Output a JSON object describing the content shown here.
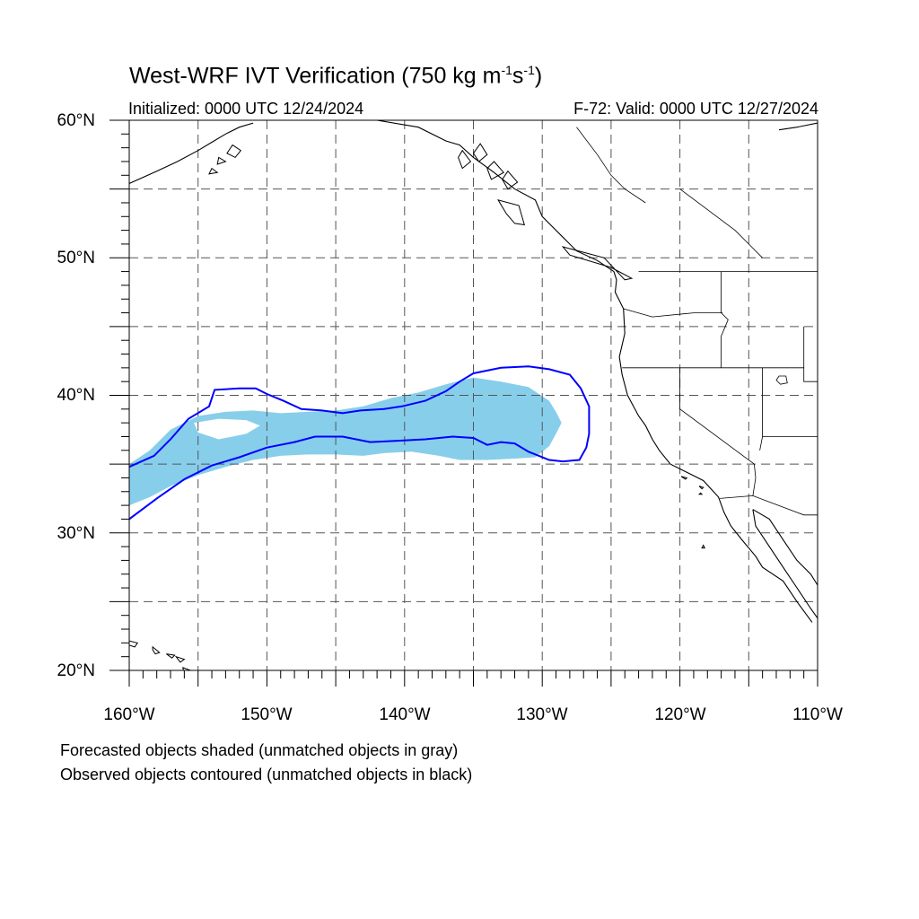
{
  "title": {
    "main": "West-WRF IVT Verification (750 kg m",
    "sup1": "-1",
    "mid": "s",
    "sup2": "-1",
    "end": ")"
  },
  "subtitle_left": "Initialized: 0000 UTC 12/24/2024",
  "subtitle_right": "F-72: Valid: 0000 UTC 12/27/2024",
  "lat_labels": [
    "60°N",
    "50°N",
    "40°N",
    "30°N",
    "20°N"
  ],
  "lon_labels": [
    "160°W",
    "150°W",
    "140°W",
    "130°W",
    "120°W",
    "110°W"
  ],
  "notes": {
    "line1": "Forecasted objects shaded (unmatched objects in gray)",
    "line2": "Observed objects contoured (unmatched objects in black)"
  },
  "map": {
    "lon_range": [
      -160,
      -110
    ],
    "lat_range": [
      20,
      60
    ],
    "grid_interval_deg": 5,
    "forecast_fill_color": "#87CEEB",
    "observed_contour_color": "#0000FF",
    "coastline_color": "#000000",
    "forecast_object_outline": [
      [
        -160,
        32.0
      ],
      [
        -160,
        35.0
      ],
      [
        -158.5,
        36.0
      ],
      [
        -157,
        37.5
      ],
      [
        -155,
        38.5
      ],
      [
        -153,
        38.8
      ],
      [
        -151,
        38.9
      ],
      [
        -149,
        38.7
      ],
      [
        -147,
        38.8
      ],
      [
        -145,
        38.9
      ],
      [
        -143,
        39.2
      ],
      [
        -141,
        39.8
      ],
      [
        -139,
        40.2
      ],
      [
        -137,
        40.8
      ],
      [
        -135,
        41.3
      ],
      [
        -133,
        41.0
      ],
      [
        -131,
        40.6
      ],
      [
        -129.5,
        39.6
      ],
      [
        -129,
        38.8
      ],
      [
        -128.6,
        38.0
      ],
      [
        -129,
        37.2
      ],
      [
        -129.5,
        36.3
      ],
      [
        -130.5,
        35.5
      ],
      [
        -132,
        35.4
      ],
      [
        -134,
        35.3
      ],
      [
        -136,
        35.3
      ],
      [
        -137.5,
        35.6
      ],
      [
        -139.5,
        35.9
      ],
      [
        -141.5,
        35.8
      ],
      [
        -143,
        35.6
      ],
      [
        -145,
        35.7
      ],
      [
        -147,
        35.7
      ],
      [
        -149,
        35.6
      ],
      [
        -151,
        35.3
      ],
      [
        -153,
        34.8
      ],
      [
        -155,
        34.2
      ],
      [
        -157,
        33.4
      ],
      [
        -158.5,
        32.6
      ]
    ],
    "forecast_hole_outline": [
      [
        -155.3,
        38.0
      ],
      [
        -153.5,
        38.3
      ],
      [
        -151.5,
        38.2
      ],
      [
        -150.5,
        37.8
      ],
      [
        -151.5,
        37.2
      ],
      [
        -153.5,
        36.8
      ],
      [
        -155.0,
        37.3
      ]
    ],
    "observed_contour_outline": [
      [
        -160,
        34.8
      ],
      [
        -158.2,
        35.6
      ],
      [
        -157,
        36.8
      ],
      [
        -155.7,
        38.3
      ],
      [
        -154.2,
        39.2
      ],
      [
        -153.8,
        40.4
      ],
      [
        -152,
        40.5
      ],
      [
        -150.8,
        40.5
      ],
      [
        -150,
        40.1
      ],
      [
        -148.8,
        39.6
      ],
      [
        -147.5,
        39.0
      ],
      [
        -146,
        38.9
      ],
      [
        -144.5,
        38.7
      ],
      [
        -143.2,
        38.9
      ],
      [
        -141.5,
        39.0
      ],
      [
        -140.2,
        39.2
      ],
      [
        -138.5,
        39.6
      ],
      [
        -137,
        40.3
      ],
      [
        -136,
        41.0
      ],
      [
        -135,
        41.6
      ],
      [
        -133,
        42.0
      ],
      [
        -131,
        42.1
      ],
      [
        -129.5,
        41.9
      ],
      [
        -128,
        41.5
      ],
      [
        -127.2,
        40.5
      ],
      [
        -126.6,
        39.2
      ],
      [
        -126.6,
        37.2
      ],
      [
        -126.8,
        36.2
      ],
      [
        -127.3,
        35.3
      ],
      [
        -128.5,
        35.2
      ],
      [
        -129.5,
        35.3
      ],
      [
        -131,
        35.9
      ],
      [
        -132,
        36.5
      ],
      [
        -133,
        36.6
      ],
      [
        -134,
        36.4
      ],
      [
        -135,
        36.9
      ],
      [
        -136.5,
        37.0
      ],
      [
        -138.5,
        36.8
      ],
      [
        -140.5,
        36.7
      ],
      [
        -142.5,
        36.6
      ],
      [
        -144.5,
        37.0
      ],
      [
        -146.5,
        37.0
      ],
      [
        -148,
        36.6
      ],
      [
        -150,
        36.2
      ],
      [
        -152,
        35.5
      ],
      [
        -154,
        34.9
      ],
      [
        -156,
        33.9
      ],
      [
        -158,
        32.5
      ],
      [
        -160,
        31.0
      ]
    ],
    "coastline_main": [
      [
        -142,
        60
      ],
      [
        -139,
        59.5
      ],
      [
        -137,
        58.5
      ],
      [
        -136,
        58.2
      ],
      [
        -135,
        57.3
      ],
      [
        -133.5,
        56.2
      ],
      [
        -132,
        55.0
      ],
      [
        -130.5,
        54.2
      ],
      [
        -130,
        53.0
      ],
      [
        -128.5,
        51.5
      ],
      [
        -127.5,
        50.5
      ],
      [
        -126,
        49.8
      ],
      [
        -124.8,
        49.0
      ],
      [
        -124.6,
        48.4
      ],
      [
        -124.7,
        47.5
      ],
      [
        -124.1,
        46.3
      ],
      [
        -124.0,
        44.5
      ],
      [
        -124.4,
        42.8
      ],
      [
        -124.2,
        41.5
      ],
      [
        -123.8,
        40.0
      ],
      [
        -123.0,
        38.5
      ],
      [
        -122.5,
        37.8
      ],
      [
        -122.0,
        36.8
      ],
      [
        -121.5,
        36.0
      ],
      [
        -120.7,
        35.0
      ],
      [
        -119.5,
        34.4
      ],
      [
        -118.3,
        33.8
      ],
      [
        -117.2,
        32.6
      ],
      [
        -116.8,
        31.5
      ],
      [
        -116.3,
        30.5
      ],
      [
        -115.5,
        29.5
      ],
      [
        -114.5,
        28.3
      ],
      [
        -114.0,
        27.5
      ],
      [
        -112.5,
        26.5
      ],
      [
        -111.5,
        25.0
      ],
      [
        -110.4,
        23.5
      ]
    ],
    "coastline_gulf_east": [
      [
        -114.7,
        31.7
      ],
      [
        -113.5,
        31.0
      ],
      [
        -112.5,
        29.5
      ],
      [
        -111.5,
        28.0
      ],
      [
        -110.5,
        27.0
      ],
      [
        -110,
        26.2
      ]
    ],
    "coastline_baja_east": [
      [
        -114.7,
        31.7
      ],
      [
        -114.5,
        30.5
      ],
      [
        -113.5,
        29.0
      ],
      [
        -112.5,
        27.5
      ],
      [
        -111.5,
        26.0
      ],
      [
        -110.5,
        24.5
      ],
      [
        -110,
        23.8
      ]
    ],
    "coastline_alaska_west": [
      [
        -160,
        55.4
      ],
      [
        -158,
        56.3
      ],
      [
        -156.5,
        57.0
      ],
      [
        -155,
        57.8
      ],
      [
        -154,
        58.4
      ],
      [
        -153,
        59.0
      ],
      [
        -152,
        59.5
      ],
      [
        -151,
        59.8
      ]
    ],
    "coastline_ne_corner": [
      [
        -112.8,
        59.3
      ],
      [
        -111.5,
        59.5
      ],
      [
        -110,
        59.8
      ]
    ],
    "borders": [
      [
        [
          -123,
          49
        ],
        [
          -110,
          49
        ]
      ],
      [
        [
          -117,
          49
        ],
        [
          -117,
          46
        ],
        [
          -116.5,
          45.5
        ],
        [
          -117,
          44.3
        ],
        [
          -117,
          42
        ]
      ],
      [
        [
          -124.1,
          46.3
        ],
        [
          -122,
          45.7
        ],
        [
          -119,
          46
        ],
        [
          -116.9,
          46
        ]
      ],
      [
        [
          -124.2,
          42
        ],
        [
          -111,
          42
        ]
      ],
      [
        [
          -120,
          42
        ],
        [
          -120,
          39
        ],
        [
          -114.6,
          35
        ]
      ],
      [
        [
          -114,
          42
        ],
        [
          -114,
          37
        ],
        [
          -114.2,
          36
        ]
      ],
      [
        [
          -114,
          37
        ],
        [
          -110,
          37
        ]
      ],
      [
        [
          -111,
          45
        ],
        [
          -111,
          41
        ],
        [
          -110,
          41
        ]
      ],
      [
        [
          -117.1,
          32.5
        ],
        [
          -114.7,
          32.7
        ],
        [
          -111,
          31.3
        ],
        [
          -110,
          31.3
        ]
      ],
      [
        [
          -114.7,
          32.7
        ],
        [
          -114.5,
          34
        ],
        [
          -114.6,
          35
        ]
      ],
      [
        [
          -120,
          55
        ],
        [
          -118,
          53.5
        ],
        [
          -116,
          52
        ],
        [
          -115,
          51
        ],
        [
          -114,
          50
        ]
      ],
      [
        [
          -127.5,
          59.5
        ],
        [
          -126,
          57.5
        ],
        [
          -125,
          56
        ],
        [
          -124,
          55
        ],
        [
          -122.5,
          54
        ]
      ]
    ],
    "islands": [
      [
        [
          -160.2,
          22.2
        ],
        [
          -159.4,
          22.0
        ],
        [
          -159.6,
          21.7
        ],
        [
          -160.2,
          21.9
        ]
      ],
      [
        [
          -158.3,
          21.7
        ],
        [
          -157.8,
          21.3
        ],
        [
          -158.1,
          21.2
        ],
        [
          -158.3,
          21.5
        ]
      ],
      [
        [
          -157.3,
          21.2
        ],
        [
          -156.7,
          21.1
        ],
        [
          -156.9,
          20.9
        ]
      ],
      [
        [
          -156.6,
          21.0
        ],
        [
          -156.0,
          20.8
        ],
        [
          -156.3,
          20.6
        ]
      ],
      [
        [
          -156.1,
          20.2
        ],
        [
          -155.0,
          19.8
        ],
        [
          -154.8,
          19.5
        ],
        [
          -155.6,
          18.9
        ],
        [
          -156.0,
          19.6
        ]
      ],
      [
        [
          -133.2,
          54.2
        ],
        [
          -131.7,
          53.8
        ],
        [
          -131.3,
          52.4
        ],
        [
          -132,
          52.5
        ],
        [
          -132.6,
          53.2
        ]
      ],
      [
        [
          -128.5,
          50.8
        ],
        [
          -127,
          50.4
        ],
        [
          -125.5,
          50.0
        ],
        [
          -124,
          48.4
        ],
        [
          -123.5,
          48.5
        ],
        [
          -125,
          49.3
        ],
        [
          -128,
          50.2
        ]
      ],
      [
        [
          -134.5,
          58.3
        ],
        [
          -134.0,
          57.5
        ],
        [
          -134.6,
          57.0
        ],
        [
          -135.0,
          57.6
        ]
      ],
      [
        [
          -135.8,
          57.8
        ],
        [
          -135.2,
          57.0
        ],
        [
          -135.8,
          56.5
        ],
        [
          -136.1,
          57.3
        ]
      ],
      [
        [
          -133.5,
          57.0
        ],
        [
          -132.8,
          56.2
        ],
        [
          -133.7,
          55.7
        ],
        [
          -134.0,
          56.5
        ]
      ],
      [
        [
          -132.5,
          56.3
        ],
        [
          -131.8,
          55.5
        ],
        [
          -132.5,
          55.0
        ],
        [
          -132.9,
          55.7
        ]
      ],
      [
        [
          -119.9,
          34.1
        ],
        [
          -119.5,
          34.0
        ],
        [
          -119.6,
          33.9
        ]
      ],
      [
        [
          -118.6,
          33.4
        ],
        [
          -118.3,
          33.3
        ],
        [
          -118.4,
          33.2
        ]
      ],
      [
        [
          -118.5,
          32.9
        ],
        [
          -118.4,
          32.8
        ],
        [
          -118.6,
          32.8
        ]
      ],
      [
        [
          -118.3,
          29.1
        ],
        [
          -118.2,
          28.9
        ],
        [
          -118.4,
          28.9
        ]
      ],
      [
        [
          -152.5,
          58.2
        ],
        [
          -151.9,
          57.8
        ],
        [
          -152.3,
          57.3
        ],
        [
          -152.9,
          57.6
        ]
      ],
      [
        [
          -153.5,
          57.3
        ],
        [
          -153.0,
          57.0
        ],
        [
          -153.6,
          56.8
        ]
      ],
      [
        [
          -154.0,
          56.5
        ],
        [
          -153.6,
          56.2
        ],
        [
          -154.2,
          56.1
        ]
      ]
    ],
    "lakes": [
      [
        [
          -112.8,
          41.4
        ],
        [
          -112.3,
          41.4
        ],
        [
          -112.2,
          40.9
        ],
        [
          -112.7,
          40.8
        ],
        [
          -113.0,
          41.1
        ]
      ]
    ]
  }
}
